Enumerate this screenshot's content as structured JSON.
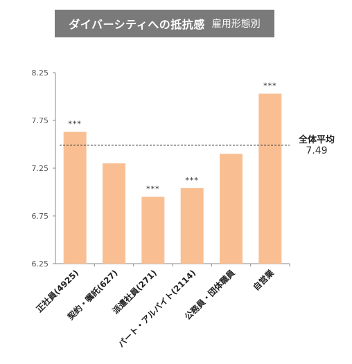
{
  "title": {
    "main": "ダイバーシティへの抵抗感",
    "sub": "雇用形態別"
  },
  "average": {
    "label": "全体平均",
    "value": 7.49
  },
  "colors": {
    "bar": "#f9bf93",
    "axis": "#888888",
    "title_bg": "#7a7a7a"
  },
  "chart_data": {
    "type": "bar",
    "title": "ダイバーシティへの抵抗感 雇用形態別",
    "categories": [
      "正社員(4925)",
      "契約・嘱託(627)",
      "派遣社員(271)",
      "パート・アルバイト(2114)",
      "公務員・団体職員",
      "自営業"
    ],
    "values": [
      7.63,
      7.3,
      6.95,
      7.04,
      7.4,
      8.03
    ],
    "significance": [
      "***",
      "",
      "***",
      "***",
      "",
      "***"
    ],
    "reference_line": {
      "label": "全体平均",
      "value": 7.49
    },
    "ylim": [
      6.25,
      8.25
    ],
    "yticks": [
      "6.25",
      "6.75",
      "7.25",
      "7.75",
      "8.25"
    ],
    "grid": false,
    "xlabel": "",
    "ylabel": ""
  }
}
